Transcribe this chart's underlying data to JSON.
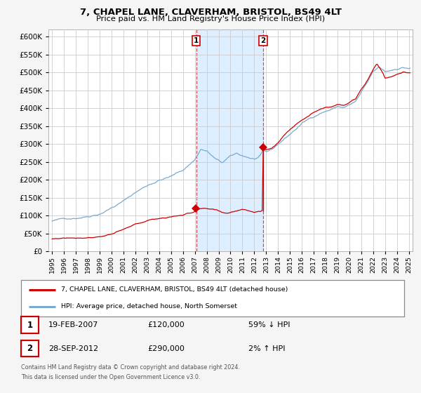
{
  "title": "7, CHAPEL LANE, CLAVERHAM, BRISTOL, BS49 4LT",
  "subtitle": "Price paid vs. HM Land Registry's House Price Index (HPI)",
  "legend_line1": "7, CHAPEL LANE, CLAVERHAM, BRISTOL, BS49 4LT (detached house)",
  "legend_line2": "HPI: Average price, detached house, North Somerset",
  "transaction1_date": "19-FEB-2007",
  "transaction1_price": 120000,
  "transaction1_pct": "59% ↓ HPI",
  "transaction2_date": "28-SEP-2012",
  "transaction2_price": 290000,
  "transaction2_pct": "2% ↑ HPI",
  "footnote1": "Contains HM Land Registry data © Crown copyright and database right 2024.",
  "footnote2": "This data is licensed under the Open Government Licence v3.0.",
  "red_line_color": "#cc0000",
  "blue_line_color": "#7aaad0",
  "background_color": "#f5f5f5",
  "plot_bg_color": "#ffffff",
  "grid_color": "#cccccc",
  "shading_color": "#dceeff",
  "vline1_color": "#cc0000",
  "vline2_color": "#cc0000",
  "ylim": [
    0,
    620000
  ],
  "yticks": [
    0,
    50000,
    100000,
    150000,
    200000,
    250000,
    300000,
    350000,
    400000,
    450000,
    500000,
    550000,
    600000
  ],
  "year_start": 1995,
  "year_end": 2025,
  "transaction1_year": 2007.12,
  "transaction2_year": 2012.75
}
